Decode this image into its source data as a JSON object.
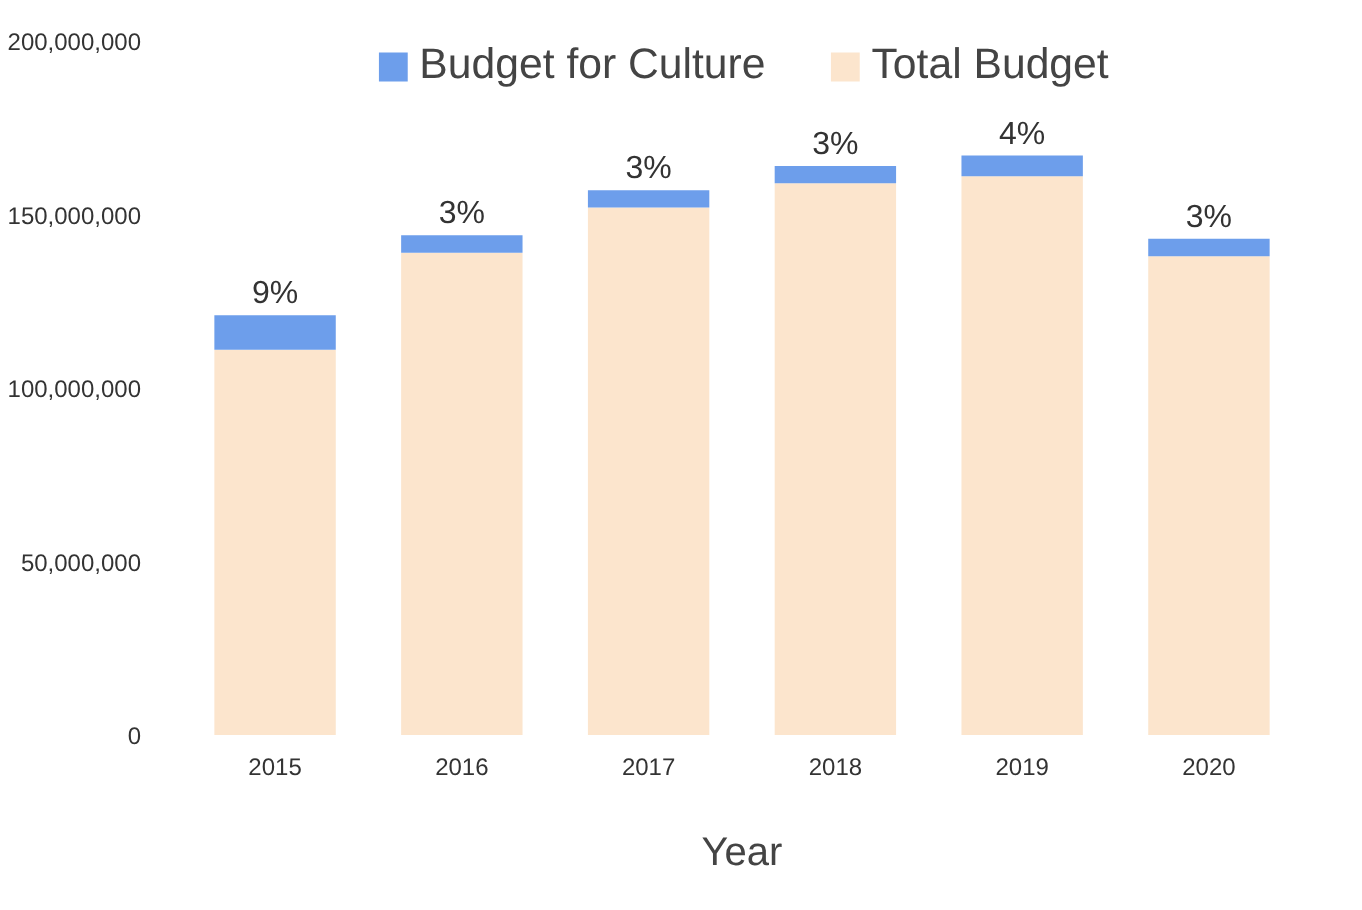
{
  "chart_data": {
    "type": "bar",
    "stacked": true,
    "xlabel": "Year",
    "categories": [
      "2015",
      "2016",
      "2017",
      "2018",
      "2019",
      "2020"
    ],
    "series": [
      {
        "name": "Total Budget",
        "color": "#fce5cd",
        "values": [
          111000000,
          139000000,
          152000000,
          159000000,
          161000000,
          138000000
        ]
      },
      {
        "name": "Budget for Culture",
        "color": "#6d9eeb",
        "values": [
          10000000,
          5000000,
          5000000,
          5000000,
          6000000,
          5000000
        ]
      }
    ],
    "annotations": [
      {
        "text": "9%",
        "x": "2015",
        "y": 121000000
      },
      {
        "text": "3%",
        "x": "2016",
        "y": 144000000
      },
      {
        "text": "3%",
        "x": "2017",
        "y": 157000000
      },
      {
        "text": "3%",
        "x": "2018",
        "y": 164000000
      },
      {
        "text": "4%",
        "x": "2019",
        "y": 167000000
      },
      {
        "text": "3%",
        "x": "2020",
        "y": 143000000
      }
    ],
    "ylim": [
      0,
      200000000
    ],
    "yticks": [
      {
        "value": 0,
        "label": "0"
      },
      {
        "value": 50000000,
        "label": "50,000,000"
      },
      {
        "value": 100000000,
        "label": "100,000,000"
      },
      {
        "value": 150000000,
        "label": "150,000,000"
      },
      {
        "value": 200000000,
        "label": "200,000,000"
      }
    ],
    "grid": false,
    "legend": "top"
  }
}
